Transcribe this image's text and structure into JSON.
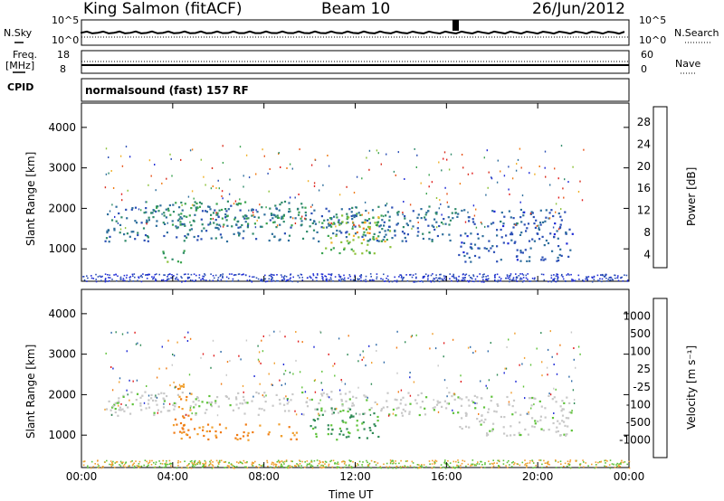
{
  "header": {
    "station": "King Salmon (fitACF)",
    "beam": "Beam 10",
    "date": "26/Jun/2012"
  },
  "top_panels": {
    "nsky_label": "N.Sky",
    "nsky_ticks": [
      "10^5",
      "10^0"
    ],
    "nsearch_label": "N.Search",
    "nsearch_ticks": [
      "10^5",
      "10^0"
    ],
    "freq_label": "Freq.",
    "freq_unit": "[MHz]",
    "freq_ticks": [
      "18",
      "8"
    ],
    "nave_label": "Nave",
    "nave_ticks": [
      "60",
      "0"
    ],
    "cpid_label": "CPID",
    "cpid_value": "normalsound (fast) 157 RF"
  },
  "chart_data": [
    {
      "type": "heatmap",
      "name": "power",
      "ylabel": "Slant Range [km]",
      "ylim": [
        200,
        4600
      ],
      "y_ticks": [
        1000,
        2000,
        3000,
        4000
      ],
      "x_ticks": [
        "00:00",
        "04:00",
        "08:00",
        "12:00",
        "16:00",
        "20:00",
        "00:00"
      ],
      "colorbar": {
        "label": "Power [dB]",
        "ticks": [
          "28",
          "24",
          "20",
          "16",
          "12",
          "8",
          "4"
        ],
        "colors": [
          "#1f2bd6",
          "#2b4fb5",
          "#2e6e9c",
          "#2f8a6a",
          "#3aa34f",
          "#8cc23a",
          "#f0b12a",
          "#f07b14",
          "#e8541a",
          "#d92d1c",
          "#e11d1d"
        ]
      },
      "regions": [
        {
          "t0": 1.0,
          "t1": 16.5,
          "r0": 1200,
          "r1": 2100,
          "level": 6
        },
        {
          "t0": 3.0,
          "t1": 10.0,
          "r0": 1600,
          "r1": 2200,
          "level": 10
        },
        {
          "t0": 10.5,
          "t1": 13.5,
          "r0": 900,
          "r1": 1900,
          "level": 14
        },
        {
          "t0": 11.8,
          "t1": 12.6,
          "r0": 1200,
          "r1": 1700,
          "level": 20
        },
        {
          "t0": 3.5,
          "t1": 4.5,
          "r0": 650,
          "r1": 1000,
          "level": 12
        },
        {
          "t0": 16.5,
          "t1": 21.5,
          "r0": 700,
          "r1": 2000,
          "level": 4
        }
      ]
    },
    {
      "type": "heatmap",
      "name": "velocity",
      "ylabel": "Slant Range [km]",
      "xlabel": "Time UT",
      "ylim": [
        200,
        4600
      ],
      "y_ticks": [
        1000,
        2000,
        3000,
        4000
      ],
      "x_ticks": [
        "00:00",
        "04:00",
        "08:00",
        "12:00",
        "16:00",
        "20:00",
        "00:00"
      ],
      "colorbar": {
        "label": "Velocity [m s⁻¹]",
        "ticks": [
          "1000",
          "500",
          "100",
          "25",
          "-25",
          "-100",
          "-500",
          "-1000"
        ],
        "colors": [
          "#1f2bd6",
          "#2f6aa8",
          "#2f8a55",
          "#5fc23a",
          "#c8c8c8",
          "#f0a030",
          "#f07b14",
          "#e11d1d"
        ]
      },
      "regions": [
        {
          "t0": 1.0,
          "t1": 16.5,
          "r0": 1500,
          "r1": 2100,
          "v": 0
        },
        {
          "t0": 4.0,
          "t1": 9.5,
          "r0": 900,
          "r1": 1300,
          "v": -300
        },
        {
          "t0": 10.0,
          "t1": 13.0,
          "r0": 900,
          "r1": 1700,
          "v": 300
        },
        {
          "t0": 4.0,
          "t1": 4.8,
          "r0": 1200,
          "r1": 2300,
          "v": -300
        },
        {
          "t0": 16.5,
          "t1": 21.5,
          "r0": 1000,
          "r1": 2000,
          "v": 0
        }
      ]
    }
  ]
}
